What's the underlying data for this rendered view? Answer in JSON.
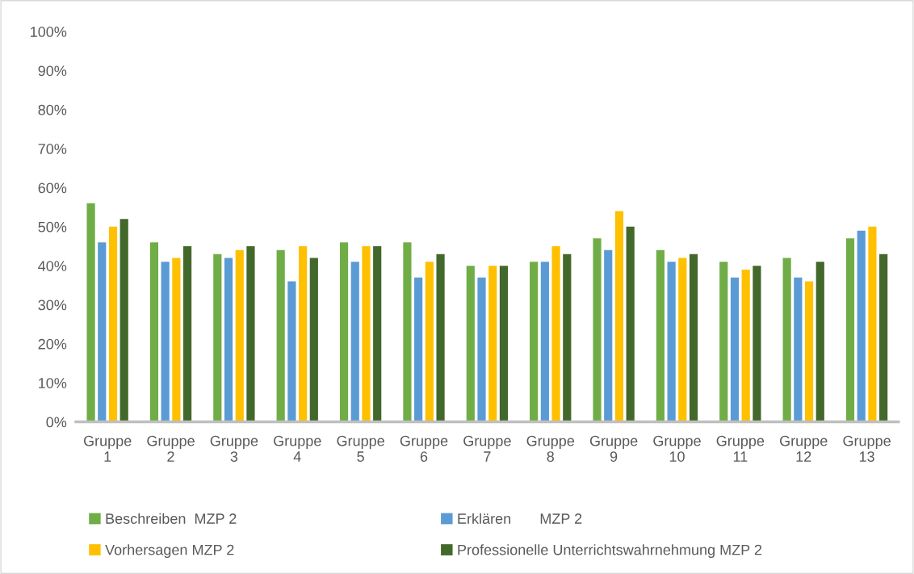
{
  "chart_data": {
    "type": "bar",
    "categories": [
      "Gruppe 1",
      "Gruppe 2",
      "Gruppe 3",
      "Gruppe 4",
      "Gruppe 5",
      "Gruppe 6",
      "Gruppe 7",
      "Gruppe 8",
      "Gruppe 9",
      "Gruppe 10",
      "Gruppe 11",
      "Gruppe 12",
      "Gruppe 13"
    ],
    "series": [
      {
        "name": "Beschreiben  MZP 2",
        "color": "#70ad47",
        "values": [
          56,
          46,
          43,
          44,
          46,
          46,
          40,
          41,
          47,
          44,
          41,
          42,
          47
        ]
      },
      {
        "name": "Erklären       MZP 2",
        "color": "#5b9bd5",
        "values": [
          46,
          41,
          42,
          36,
          41,
          37,
          37,
          41,
          44,
          41,
          37,
          37,
          49
        ]
      },
      {
        "name": "Vorhersagen MZP 2",
        "color": "#ffc000",
        "values": [
          50,
          42,
          44,
          45,
          45,
          41,
          40,
          45,
          54,
          42,
          39,
          36,
          50
        ]
      },
      {
        "name": "Professionelle Unterrichtswahrnehmung MZP 2",
        "color": "#43682b",
        "values": [
          52,
          45,
          45,
          42,
          45,
          43,
          40,
          43,
          50,
          43,
          40,
          41,
          43
        ]
      }
    ],
    "ylim": [
      0,
      100
    ],
    "yticks": [
      {
        "value": 0,
        "label": "0%"
      },
      {
        "value": 10,
        "label": "10%"
      },
      {
        "value": 20,
        "label": "20%"
      },
      {
        "value": 30,
        "label": "30%"
      },
      {
        "value": 40,
        "label": "40%"
      },
      {
        "value": 50,
        "label": "50%"
      },
      {
        "value": 60,
        "label": "60%"
      },
      {
        "value": 70,
        "label": "70%"
      },
      {
        "value": 80,
        "label": "80%"
      },
      {
        "value": 90,
        "label": "90%"
      },
      {
        "value": 100,
        "label": "100%"
      }
    ],
    "grid": false,
    "legend": "bottom"
  }
}
